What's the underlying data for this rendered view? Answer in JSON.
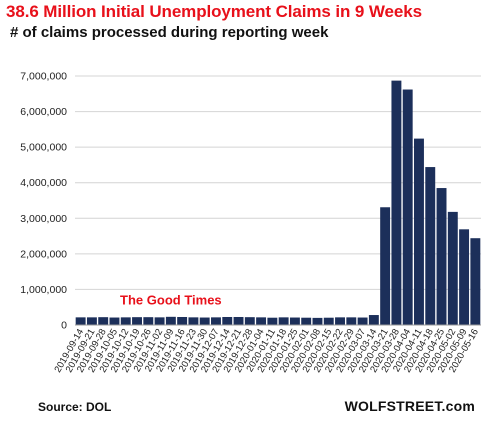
{
  "header": {
    "title": "38.6 Million Initial Unemployment Claims in 9 Weeks",
    "subtitle": "# of claims processed during reporting week"
  },
  "footer": {
    "source": "Source: DOL",
    "brand": "WOLFSTREET.com"
  },
  "chart_data": {
    "type": "bar",
    "title": "38.6 Million Initial Unemployment Claims in 9 Weeks",
    "subtitle": "# of claims processed during reporting week",
    "xlabel": "",
    "ylabel": "",
    "ylim": [
      0,
      7000000
    ],
    "yticks": [
      0,
      1000000,
      2000000,
      3000000,
      4000000,
      5000000,
      6000000,
      7000000
    ],
    "ytick_labels": [
      "0",
      "1,000,000",
      "2,000,000",
      "3,000,000",
      "4,000,000",
      "5,000,000",
      "6,000,000",
      "7,000,000"
    ],
    "grid": "horizontal",
    "bar_color": "#1c2f5a",
    "annotation_color": "#e8101a",
    "categories": [
      "2019-09-14",
      "2019-09-21",
      "2019-09-28",
      "2019-10-05",
      "2019-10-12",
      "2019-10-19",
      "2019-10-26",
      "2019-11-02",
      "2019-11-09",
      "2019-11-16",
      "2019-11-23",
      "2019-11-30",
      "2019-12-07",
      "2019-12-14",
      "2019-12-21",
      "2019-12-28",
      "2020-01-04",
      "2020-01-11",
      "2020-01-18",
      "2020-01-25",
      "2020-02-01",
      "2020-02-08",
      "2020-02-15",
      "2020-02-22",
      "2020-02-29",
      "2020-03-07",
      "2020-03-14",
      "2020-03-21",
      "2020-03-28",
      "2020-04-04",
      "2020-04-11",
      "2020-04-18",
      "2020-04-25",
      "2020-05-02",
      "2020-05-09",
      "2020-05-16"
    ],
    "xtick_labels": [
      "2019-09-14",
      "2019-09-21",
      "2019-09-28",
      "2019-10-05",
      "2019-10-12",
      "2019-10-19",
      "2019-10-26",
      "2019-11-02",
      "2019-11-09",
      "2019-11-16",
      "2019-11-23",
      "2019-11-30",
      "2019-12-07",
      "2019-12-14",
      "2019-12-21",
      "2019-12-28",
      "2020-01-04",
      "2020-01-11",
      "2020-01-18",
      "2020-01-25",
      "2020-02-01",
      "2020-02-08",
      "2020-02-15",
      "2020-02-22",
      "2020-02-29",
      "2020-03-07",
      "2020-03-14",
      "2020-03-21",
      "2020-03-28",
      "2020-04-04",
      "2020-04-11",
      "2020-04-18",
      "2020-04-25",
      "2020-05-02",
      "2020-05-09",
      "2020-05-16"
    ],
    "values": [
      215000,
      215000,
      220000,
      210000,
      215000,
      220000,
      220000,
      215000,
      230000,
      225000,
      215000,
      210000,
      215000,
      225000,
      225000,
      220000,
      215000,
      205000,
      215000,
      210000,
      205000,
      200000,
      205000,
      215000,
      215000,
      210000,
      280000,
      3310000,
      6870000,
      6620000,
      5240000,
      4440000,
      3850000,
      3180000,
      2690000,
      2440000
    ],
    "annotations": [
      {
        "text": "The Good Times",
        "x": "2019-11-09",
        "y": 570000
      }
    ]
  }
}
